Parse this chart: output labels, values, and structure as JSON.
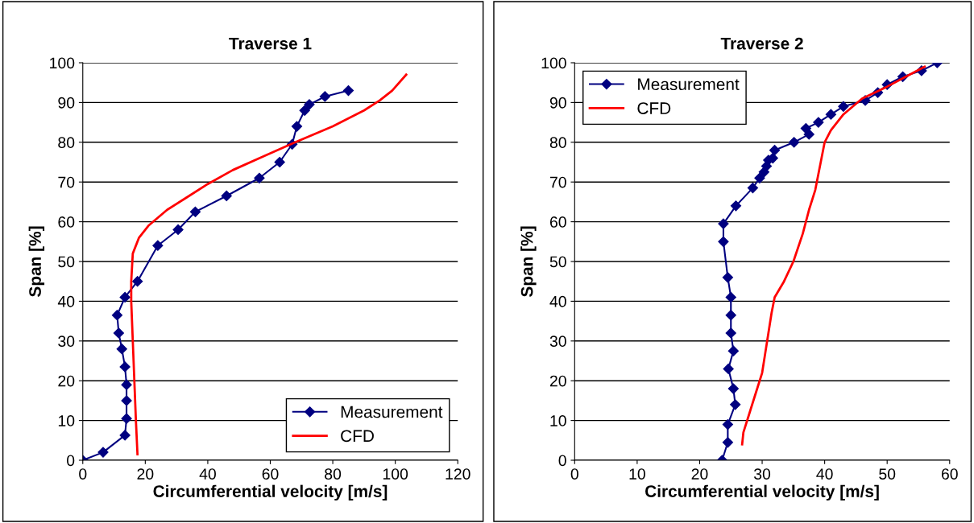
{
  "chart_data": [
    {
      "type": "line",
      "title": "Traverse 1",
      "xlabel": "Circumferential velocity [m/s]",
      "ylabel": "Span [%]",
      "xlim": [
        0,
        120
      ],
      "xticks": [
        0,
        20,
        40,
        60,
        80,
        100,
        120
      ],
      "ylim": [
        0,
        100
      ],
      "yticks": [
        0,
        10,
        20,
        30,
        40,
        50,
        60,
        70,
        80,
        90,
        100
      ],
      "grid": "y",
      "legend": "bottom right",
      "series": [
        {
          "name": "Measurement",
          "color": "#000080",
          "marker": "diamond",
          "x": [
            0,
            6.5,
            13.5,
            14,
            14,
            14,
            13.5,
            12.5,
            11.5,
            11,
            13.5,
            17.5,
            24,
            30.5,
            36,
            46,
            56.5,
            63,
            67,
            68.5,
            71,
            72.5,
            77.5,
            85
          ],
          "values": [
            0,
            2,
            6.3,
            10.5,
            15,
            19,
            23.5,
            28,
            32,
            36.5,
            41,
            45,
            54,
            58,
            62.5,
            66.5,
            71,
            75,
            79.5,
            84,
            88,
            89.5,
            91.5,
            93
          ]
        },
        {
          "name": "CFD",
          "color": "#ff0000",
          "marker": "none",
          "x": [
            17.5,
            17,
            16.5,
            16,
            15.5,
            15.5,
            16,
            18,
            21,
            27,
            33,
            40,
            48,
            58,
            68,
            80,
            90,
            95,
            99,
            103.5
          ],
          "values": [
            1.5,
            10,
            20,
            30,
            40,
            45,
            52,
            56,
            59,
            63,
            66,
            69.5,
            73,
            76.5,
            80,
            84,
            88,
            90.5,
            93,
            97
          ]
        }
      ]
    },
    {
      "type": "line",
      "title": "Traverse 2",
      "xlabel": "Circumferential velocity [m/s]",
      "ylabel": "Span [%]",
      "xlim": [
        0,
        60
      ],
      "xticks": [
        0,
        10,
        20,
        30,
        40,
        50,
        60
      ],
      "ylim": [
        0,
        100
      ],
      "yticks": [
        0,
        10,
        20,
        30,
        40,
        50,
        60,
        70,
        80,
        90,
        100
      ],
      "grid": "y",
      "legend": "top left",
      "series": [
        {
          "name": "Measurement",
          "color": "#000080",
          "marker": "diamond",
          "x": [
            23.6,
            24.5,
            24.5,
            25.7,
            25.4,
            24.6,
            25.4,
            25,
            25,
            25,
            24.5,
            23.8,
            23.8,
            25.8,
            28.5,
            29.6,
            30.3,
            30.7,
            31,
            31.7,
            32,
            35.1,
            37.5,
            37,
            39,
            41,
            43,
            46.5,
            48.5,
            50,
            52.5,
            55.5,
            58
          ],
          "values": [
            0,
            4.5,
            9,
            14,
            18,
            23,
            27.5,
            32,
            36.5,
            41,
            46,
            55,
            59.5,
            64,
            68.5,
            71,
            72.5,
            74,
            75.5,
            76,
            78,
            80,
            82,
            83.5,
            85,
            87,
            89,
            90.5,
            92.5,
            94.5,
            96.5,
            98,
            100
          ]
        },
        {
          "name": "CFD",
          "color": "#ff0000",
          "marker": "none",
          "x": [
            26.8,
            27,
            28,
            29,
            30,
            30.5,
            31,
            31.5,
            32,
            33.5,
            35,
            36.5,
            37.5,
            38.5,
            39,
            40,
            41,
            43,
            46,
            50,
            53,
            56
          ],
          "values": [
            4,
            7,
            12,
            17,
            22,
            27,
            32,
            37,
            41,
            45,
            50,
            57,
            63,
            68,
            72,
            80,
            83,
            87,
            91,
            94,
            96.5,
            99
          ]
        }
      ]
    }
  ]
}
